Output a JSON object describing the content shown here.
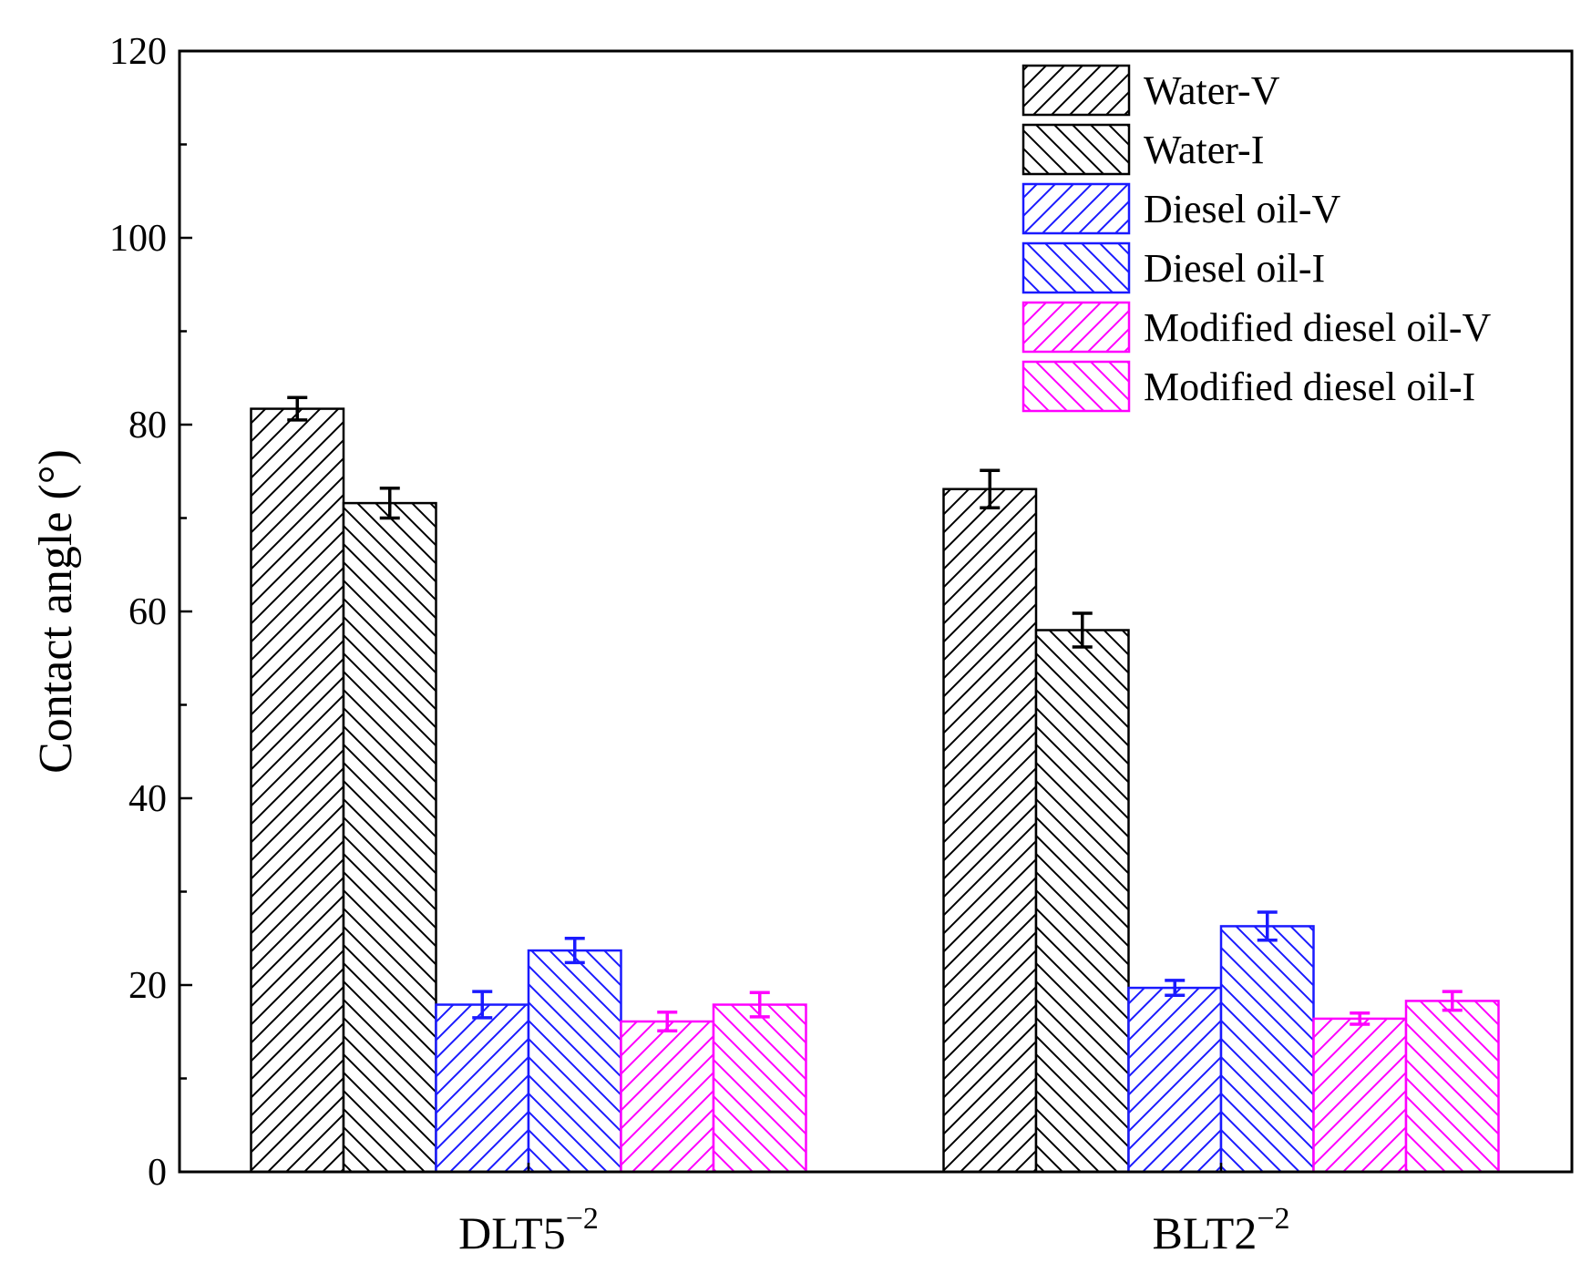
{
  "chart_data": {
    "type": "bar",
    "title": "",
    "xlabel": "",
    "ylabel": "Contact angle (°)",
    "ylim": [
      0,
      120
    ],
    "y_ticks": [
      "0",
      "20",
      "40",
      "60",
      "80",
      "100",
      "120"
    ],
    "categories": [
      {
        "base": "DLT5",
        "sup": "−2"
      },
      {
        "base": "BLT2",
        "sup": "−2"
      }
    ],
    "legend_position": "top-right",
    "series": [
      {
        "name": "Water-V",
        "color": "#000000",
        "hatch": "forward",
        "values": [
          81.7,
          73.1
        ],
        "errors": [
          1.2,
          2.0
        ]
      },
      {
        "name": "Water-I",
        "color": "#000000",
        "hatch": "back",
        "values": [
          71.6,
          58.0
        ],
        "errors": [
          1.6,
          1.8
        ]
      },
      {
        "name": "Diesel oil-V",
        "color": "#1a1aff",
        "hatch": "forward",
        "values": [
          17.9,
          19.7
        ],
        "errors": [
          1.4,
          0.8
        ]
      },
      {
        "name": "Diesel oil-I",
        "color": "#1a1aff",
        "hatch": "back",
        "values": [
          23.7,
          26.3
        ],
        "errors": [
          1.3,
          1.5
        ]
      },
      {
        "name": "Modified diesel oil-V",
        "color": "#ff00ff",
        "hatch": "forward",
        "values": [
          16.1,
          16.4
        ],
        "errors": [
          1.0,
          0.6
        ]
      },
      {
        "name": "Modified diesel oil-I",
        "color": "#ff00ff",
        "hatch": "back",
        "values": [
          17.9,
          18.3
        ],
        "errors": [
          1.3,
          1.0
        ]
      }
    ]
  }
}
